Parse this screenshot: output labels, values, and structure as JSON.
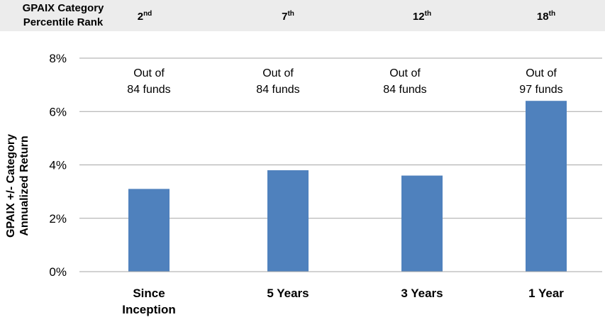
{
  "header": {
    "rank_label_line1": "GPAIX Category",
    "rank_label_line2": "Percentile Rank",
    "ranks": [
      {
        "num": "2",
        "suffix": "nd"
      },
      {
        "num": "7",
        "suffix": "th"
      },
      {
        "num": "12",
        "suffix": "th"
      },
      {
        "num": "18",
        "suffix": "th"
      }
    ]
  },
  "chart_data": {
    "type": "bar",
    "categories": [
      [
        "Since",
        "Inception"
      ],
      [
        "5 Years"
      ],
      [
        "3 Years"
      ],
      [
        "1 Year"
      ]
    ],
    "values": [
      3.1,
      3.8,
      3.6,
      6.4
    ],
    "ylim": [
      0,
      8
    ],
    "yticks": [
      0,
      2,
      4,
      6,
      8
    ],
    "ytick_labels": [
      "0%",
      "2%",
      "4%",
      "6%",
      "8%"
    ],
    "ylabel_lines": [
      "GPAIX +/- Category",
      "Annualized Return"
    ],
    "xlabel": "",
    "title": "",
    "bar_color": "#4f81bd",
    "grid": true,
    "annotations": [
      [
        "Out of",
        "84 funds"
      ],
      [
        "Out of",
        "84 funds"
      ],
      [
        "Out of",
        "84 funds"
      ],
      [
        "Out of",
        "97 funds"
      ]
    ]
  }
}
